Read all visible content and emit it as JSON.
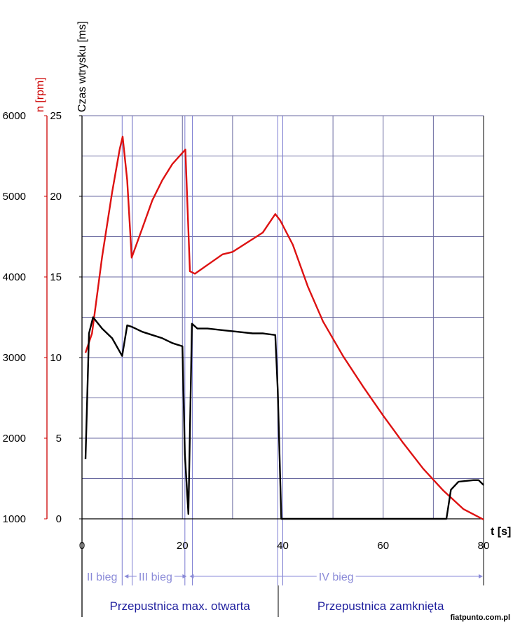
{
  "chart_data": {
    "type": "line",
    "x_axis": {
      "label": "t [s]",
      "min": 0,
      "max": 80,
      "ticks": [
        0,
        20,
        40,
        60,
        80
      ],
      "grid_step": 10
    },
    "y_axes": {
      "rpm": {
        "label": "n [rpm]",
        "min": 1000,
        "max": 6000,
        "ticks": [
          1000,
          2000,
          3000,
          4000,
          5000,
          6000
        ],
        "color": "#cc0000"
      },
      "injection": {
        "label": "Czas wtrysku [ms]",
        "min": 0,
        "max": 25,
        "ticks": [
          0,
          5,
          10,
          15,
          20,
          25
        ],
        "color": "#000000"
      }
    },
    "grid": true,
    "series": [
      {
        "name": "n [rpm]",
        "axis": "rpm",
        "color": "#dd1111",
        "points": [
          [
            0.7,
            3060
          ],
          [
            2,
            3300
          ],
          [
            4,
            4250
          ],
          [
            6,
            5050
          ],
          [
            7.5,
            5580
          ],
          [
            8.1,
            5740
          ],
          [
            9,
            5200
          ],
          [
            9.9,
            4240
          ],
          [
            12,
            4600
          ],
          [
            14,
            4950
          ],
          [
            16,
            5200
          ],
          [
            18,
            5400
          ],
          [
            20.6,
            5580
          ],
          [
            21.5,
            4070
          ],
          [
            22.5,
            4040
          ],
          [
            25,
            4150
          ],
          [
            28,
            4280
          ],
          [
            30,
            4310
          ],
          [
            33,
            4430
          ],
          [
            36,
            4550
          ],
          [
            38.5,
            4780
          ],
          [
            39.5,
            4700
          ],
          [
            42,
            4400
          ],
          [
            45,
            3880
          ],
          [
            48,
            3450
          ],
          [
            52,
            3020
          ],
          [
            56,
            2640
          ],
          [
            60,
            2280
          ],
          [
            64,
            1940
          ],
          [
            68,
            1620
          ],
          [
            72,
            1350
          ],
          [
            76,
            1120
          ],
          [
            80,
            990
          ]
        ]
      },
      {
        "name": "Czas wtrysku [ms]",
        "axis": "injection",
        "color": "#000000",
        "points": [
          [
            0.7,
            3.7
          ],
          [
            1.4,
            11.5
          ],
          [
            2.2,
            12.5
          ],
          [
            4,
            11.8
          ],
          [
            6,
            11.2
          ],
          [
            8,
            10.1
          ],
          [
            9,
            12
          ],
          [
            10,
            11.9
          ],
          [
            12,
            11.6
          ],
          [
            14,
            11.4
          ],
          [
            16,
            11.2
          ],
          [
            18,
            10.9
          ],
          [
            20,
            10.7
          ],
          [
            20.5,
            4
          ],
          [
            21.2,
            0.3
          ],
          [
            21.9,
            12.1
          ],
          [
            23,
            11.8
          ],
          [
            25,
            11.8
          ],
          [
            28,
            11.7
          ],
          [
            31,
            11.6
          ],
          [
            34,
            11.5
          ],
          [
            36,
            11.5
          ],
          [
            38.5,
            11.4
          ],
          [
            39,
            8
          ],
          [
            39.7,
            0
          ],
          [
            50,
            0
          ],
          [
            60,
            0
          ],
          [
            70,
            0
          ],
          [
            72.6,
            0
          ],
          [
            73.5,
            1.8
          ],
          [
            75,
            2.3
          ],
          [
            78,
            2.4
          ],
          [
            79,
            2.4
          ],
          [
            80,
            2.1
          ]
        ]
      }
    ],
    "annotations": {
      "gears": [
        {
          "label": "II bieg",
          "from": 0,
          "to": 8
        },
        {
          "label": "III bieg",
          "from": 8,
          "to": 21
        },
        {
          "label": "IV bieg",
          "from": 21,
          "to": 80
        }
      ],
      "throttle": [
        {
          "label": "Przepustnica max. otwarta",
          "from": 0,
          "to": 39
        },
        {
          "label": "Przepustnica zamknięta",
          "from": 39,
          "to": 80
        }
      ],
      "gear_change_lines": [
        8,
        10,
        20.5,
        22,
        39,
        40
      ]
    },
    "credit": "fiatpunto.com.pl"
  }
}
